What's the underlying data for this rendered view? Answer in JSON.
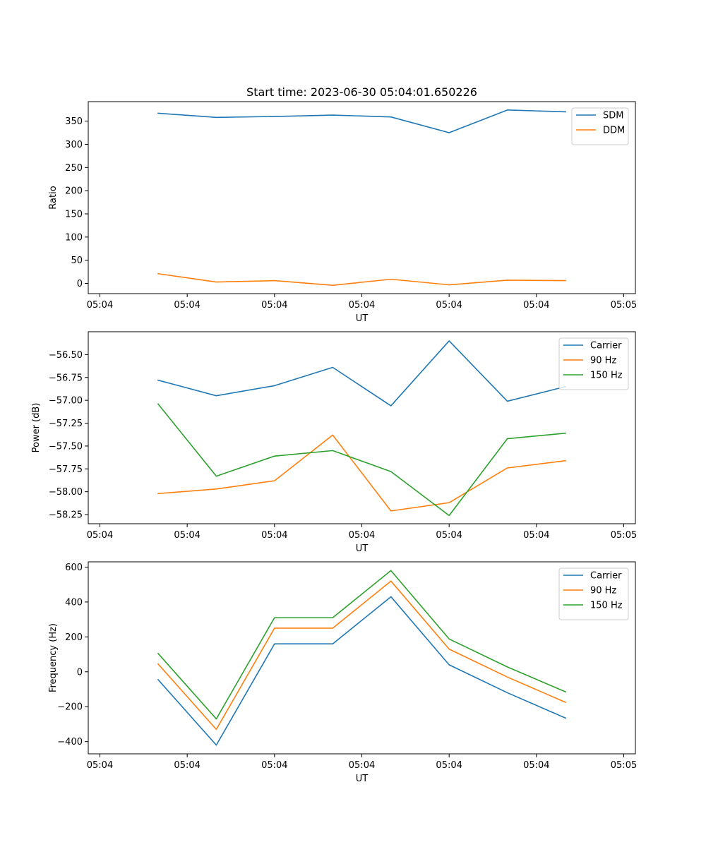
{
  "chart_data": [
    {
      "type": "line",
      "title": "Start time: 2023-06-30 05:04:01.650226",
      "xlabel": "UT",
      "ylabel": "Ratio",
      "x": [
        0.5,
        1.0,
        1.5,
        2.0,
        2.5,
        3.0,
        3.5,
        4.0
      ],
      "xlim": [
        -0.1,
        4.6
      ],
      "xticks": [
        0,
        0.75,
        1.5,
        2.25,
        3.0,
        3.75,
        4.5
      ],
      "xtick_labels": [
        "05:04",
        "05:04",
        "05:04",
        "05:04",
        "05:04",
        "05:04",
        "05:05"
      ],
      "ylim": [
        -22,
        392
      ],
      "yticks": [
        0,
        50,
        100,
        150,
        200,
        250,
        300,
        350
      ],
      "ytick_labels": [
        "0",
        "50",
        "100",
        "150",
        "200",
        "250",
        "300",
        "350"
      ],
      "legend": "top-right",
      "series": [
        {
          "name": "SDM",
          "color": "#1f77b4",
          "values": [
            367,
            358,
            360,
            363,
            359,
            325,
            374,
            370
          ]
        },
        {
          "name": "DDM",
          "color": "#ff7f0e",
          "values": [
            21,
            3,
            6,
            -4,
            9,
            -3,
            7,
            6
          ]
        }
      ]
    },
    {
      "type": "line",
      "title": "",
      "xlabel": "UT",
      "ylabel": "Power (dB)",
      "x": [
        0.5,
        1.0,
        1.5,
        2.0,
        2.5,
        3.0,
        3.5,
        4.0
      ],
      "xlim": [
        -0.1,
        4.6
      ],
      "xticks": [
        0,
        0.75,
        1.5,
        2.25,
        3.0,
        3.75,
        4.5
      ],
      "xtick_labels": [
        "05:04",
        "05:04",
        "05:04",
        "05:04",
        "05:04",
        "05:04",
        "05:05"
      ],
      "ylim": [
        -58.35,
        -56.25
      ],
      "yticks": [
        -58.25,
        -58.0,
        -57.75,
        -57.5,
        -57.25,
        -57.0,
        -56.75,
        -56.5
      ],
      "ytick_labels": [
        "−58.25",
        "−58.00",
        "−57.75",
        "−57.50",
        "−57.25",
        "−57.00",
        "−56.75",
        "−56.50"
      ],
      "legend": "top-right",
      "series": [
        {
          "name": "Carrier",
          "color": "#1f77b4",
          "values": [
            -56.78,
            -56.95,
            -56.84,
            -56.64,
            -57.06,
            -56.35,
            -57.01,
            -56.85
          ]
        },
        {
          "name": "90 Hz",
          "color": "#ff7f0e",
          "values": [
            -58.02,
            -57.97,
            -57.88,
            -57.38,
            -58.21,
            -58.12,
            -57.74,
            -57.66
          ]
        },
        {
          "name": "150 Hz",
          "color": "#2ca02c",
          "values": [
            -57.04,
            -57.83,
            -57.61,
            -57.55,
            -57.78,
            -58.26,
            -57.42,
            -57.36
          ]
        }
      ]
    },
    {
      "type": "line",
      "title": "",
      "xlabel": "UT",
      "ylabel": "Frequency (Hz)",
      "x": [
        0.5,
        1.0,
        1.5,
        2.0,
        2.5,
        3.0,
        3.5,
        4.0
      ],
      "xlim": [
        -0.1,
        4.6
      ],
      "xticks": [
        0,
        0.75,
        1.5,
        2.25,
        3.0,
        3.75,
        4.5
      ],
      "xtick_labels": [
        "05:04",
        "05:04",
        "05:04",
        "05:04",
        "05:04",
        "05:04",
        "05:05"
      ],
      "ylim": [
        -470,
        630
      ],
      "yticks": [
        -400,
        -200,
        0,
        200,
        400,
        600
      ],
      "ytick_labels": [
        "−400",
        "−200",
        "0",
        "200",
        "400",
        "600"
      ],
      "legend": "top-right",
      "series": [
        {
          "name": "Carrier",
          "color": "#1f77b4",
          "values": [
            -45,
            -420,
            160,
            160,
            430,
            40,
            -120,
            -265
          ]
        },
        {
          "name": "90 Hz",
          "color": "#ff7f0e",
          "values": [
            45,
            -330,
            250,
            250,
            520,
            130,
            -30,
            -175
          ]
        },
        {
          "name": "150 Hz",
          "color": "#2ca02c",
          "values": [
            105,
            -270,
            310,
            310,
            580,
            188,
            28,
            -115
          ]
        }
      ]
    }
  ]
}
